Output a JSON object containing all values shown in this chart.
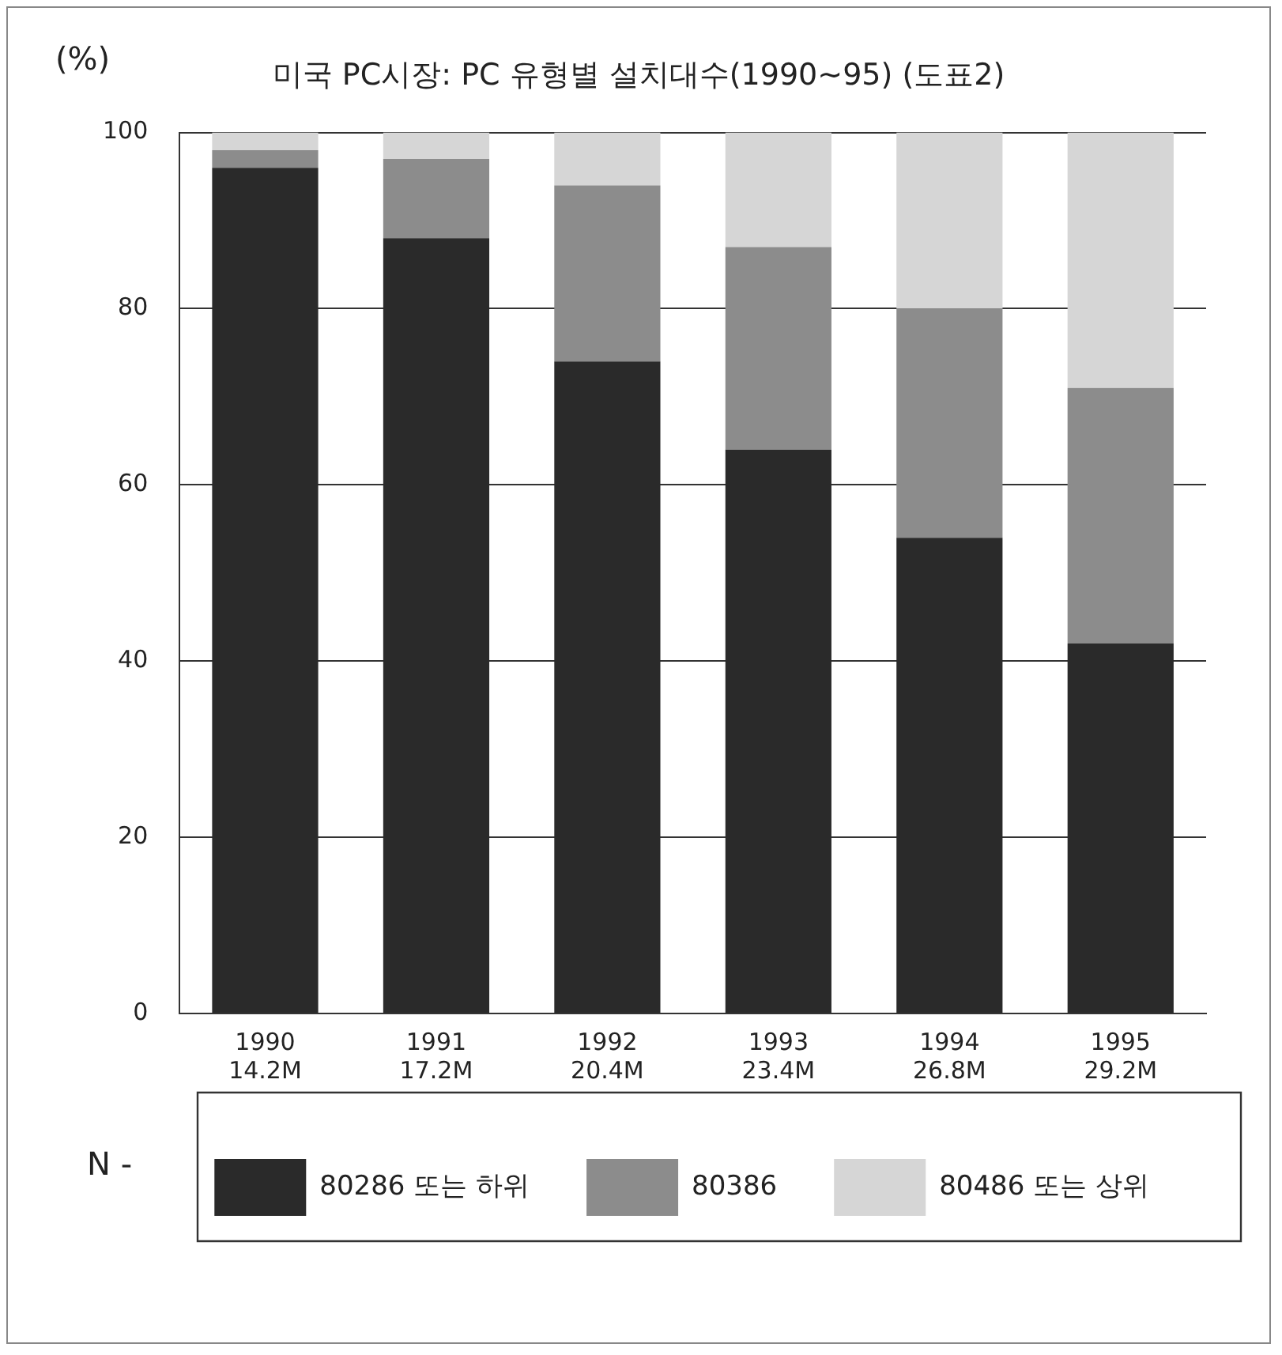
{
  "chart_data": {
    "type": "bar",
    "title": "미국 PC시장: PC 유형별 설치대수(1990~95) (도표2)",
    "ylabel": "(%)",
    "categories": [
      "1990\n14.2M",
      "1991\n17.2M",
      "1992\n20.4M",
      "1993\n23.4M",
      "1994\n26.8M",
      "1995\n29.2M"
    ],
    "series": [
      {
        "name": "80286 또는 하위",
        "color": "#2a2a2a",
        "values": [
          96,
          88,
          74,
          64,
          54,
          42
        ]
      },
      {
        "name": "80386",
        "color": "#8c8c8c",
        "values": [
          2,
          9,
          20,
          23,
          26,
          29
        ]
      },
      {
        "name": "80486 또는 상위",
        "color": "#d6d6d6",
        "values": [
          2,
          3,
          6,
          13,
          20,
          29
        ]
      }
    ],
    "stacked": true,
    "ylim": [
      0,
      100
    ],
    "yticks": [
      0,
      20,
      40,
      60,
      80,
      100
    ],
    "grid": "y",
    "legend": "bottom",
    "annotations": [
      "N -"
    ]
  }
}
